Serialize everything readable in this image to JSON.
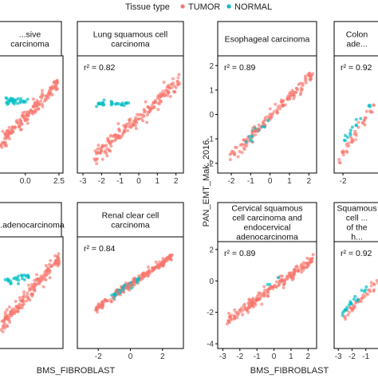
{
  "legend": {
    "title": "Tissue type",
    "entries": [
      {
        "label": "TUMOR",
        "color": "#F8766D"
      },
      {
        "label": "NORMAL",
        "color": "#00BFC4"
      }
    ]
  },
  "axis_titles": {
    "x_left": "BMS_FIBROBLAST",
    "x_right": "BMS_FIBROBLAST",
    "y_right": "PAN_EMT_Mak_2016"
  },
  "chart_data": [
    {
      "type": "scatter",
      "title": "...sive carcinoma",
      "r2": "",
      "xticks": [
        "0.0",
        "2.5"
      ],
      "yticks": [],
      "xlim": [
        -2.0,
        2.8
      ],
      "ylim": [
        -2.0,
        2.2
      ],
      "trend": {
        "x0": -1.5,
        "y0": -0.9,
        "x1": 2.6,
        "y1": 1.2
      },
      "tumor": {
        "n": 120,
        "seed": 3,
        "xmin": -2.0,
        "xmax": 2.4,
        "slope": 0.5,
        "intercept": 0.0,
        "spread": 0.25
      },
      "normal": {
        "n": 30,
        "seed": 5,
        "xmin": -1.5,
        "xmax": 0.2,
        "slope": 0.0,
        "intercept": 0.6,
        "spread": 0.15
      }
    },
    {
      "type": "scatter",
      "title": "Lung squamous cell carcinoma",
      "r2": "r² = 0.82",
      "xticks": [
        "-3",
        "-2",
        "-1",
        "0",
        "1",
        "2"
      ],
      "yticks": [],
      "xlim": [
        -3.3,
        2.4
      ],
      "ylim": [
        -2.2,
        2.0
      ],
      "trend": {
        "x0": -2.5,
        "y0": -1.3,
        "x1": 2.2,
        "y1": 1.4
      },
      "tumor": {
        "n": 140,
        "seed": 7,
        "xmin": -2.4,
        "xmax": 2.2,
        "slope": 0.6,
        "intercept": -0.2,
        "spread": 0.3
      },
      "normal": {
        "n": 30,
        "seed": 11,
        "xmin": -2.4,
        "xmax": -0.5,
        "slope": 0.0,
        "intercept": 0.3,
        "spread": 0.1
      }
    },
    {
      "type": "scatter",
      "title": "Esophageal carcinoma",
      "r2": "r² = 0.89",
      "xticks": [
        "-2",
        "-1",
        "0",
        "1",
        "2"
      ],
      "yticks": [
        "2",
        "1",
        "0",
        "-1",
        "-2"
      ],
      "xlim": [
        -2.7,
        2.4
      ],
      "ylim": [
        -2.4,
        2.4
      ],
      "trend": {
        "x0": -2.2,
        "y0": -1.9,
        "x1": 2.2,
        "y1": 1.6
      },
      "tumor": {
        "n": 110,
        "seed": 13,
        "xmin": -2.1,
        "xmax": 2.2,
        "slope": 0.8,
        "intercept": -0.1,
        "spread": 0.25
      },
      "normal": {
        "n": 12,
        "seed": 17,
        "xmin": -1.5,
        "xmax": 0.3,
        "slope": 0.8,
        "intercept": -0.1,
        "spread": 0.2
      }
    },
    {
      "type": "scatter",
      "title": "Colon ade...",
      "r2": "r² = 0.92",
      "xticks": [
        "-2"
      ],
      "yticks": [],
      "xlim": [
        -2.7,
        0.9
      ],
      "ylim": [
        -2.4,
        2.4
      ],
      "trend": {
        "x0": -2.6,
        "y0": -1.8,
        "x1": 0.9,
        "y1": 1.2
      },
      "tumor": {
        "n": 30,
        "seed": 19,
        "xmin": -2.5,
        "xmax": 0.9,
        "slope": 0.8,
        "intercept": 0.0,
        "spread": 0.3
      },
      "normal": {
        "n": 15,
        "seed": 23,
        "xmin": -2.0,
        "xmax": 0.5,
        "slope": 0.7,
        "intercept": 0.3,
        "spread": 0.2
      }
    },
    {
      "type": "scatter",
      "title": "...adenocarcinoma",
      "r2": "",
      "xticks": [],
      "yticks": [],
      "xlim": [
        -2.0,
        2.8
      ],
      "ylim": [
        -2.2,
        2.2
      ],
      "trend": {
        "x0": -1.5,
        "y0": -1.3,
        "x1": 2.7,
        "y1": 1.6
      },
      "tumor": {
        "n": 130,
        "seed": 29,
        "xmin": -1.8,
        "xmax": 2.6,
        "slope": 0.6,
        "intercept": -0.2,
        "spread": 0.3
      },
      "normal": {
        "n": 25,
        "seed": 31,
        "xmin": -1.5,
        "xmax": 0.3,
        "slope": 0.1,
        "intercept": 0.6,
        "spread": 0.15
      }
    },
    {
      "type": "scatter",
      "title": "Renal clear cell carcinoma",
      "r2": "r² = 0.84",
      "xticks": [
        "-2",
        "0",
        "2"
      ],
      "yticks": [],
      "xlim": [
        -3.3,
        3.3
      ],
      "ylim": [
        -3.2,
        2.4
      ],
      "trend": {
        "x0": -2.5,
        "y0": -1.5,
        "x1": 3.0,
        "y1": 1.4
      },
      "tumor": {
        "n": 150,
        "seed": 37,
        "xmin": -2.2,
        "xmax": 2.6,
        "slope": 0.55,
        "intercept": 0.0,
        "spread": 0.2
      },
      "normal": {
        "n": 40,
        "seed": 41,
        "xmin": -1.2,
        "xmax": 0.6,
        "slope": 0.5,
        "intercept": 0.0,
        "spread": 0.15
      }
    },
    {
      "type": "scatter",
      "title": "Cervical squamous cell carcinoma and endocervical adenocarcinoma",
      "r2": "r² = 0.89",
      "xticks": [
        "-3",
        "-2",
        "-1",
        "0",
        "1",
        "2"
      ],
      "yticks": [
        "2",
        "0",
        "-2",
        "-4"
      ],
      "xlim": [
        -3.3,
        2.5
      ],
      "ylim": [
        -4.3,
        2.5
      ],
      "trend": {
        "x0": -2.6,
        "y0": -2.6,
        "x1": 2.3,
        "y1": 1.3
      },
      "tumor": {
        "n": 150,
        "seed": 43,
        "xmin": -2.8,
        "xmax": 2.3,
        "slope": 0.8,
        "intercept": -0.4,
        "spread": 0.35
      },
      "normal": {
        "n": 3,
        "seed": 47,
        "xmin": -0.5,
        "xmax": 0.5,
        "slope": 0.8,
        "intercept": 0.0,
        "spread": 0.1
      }
    },
    {
      "type": "scatter",
      "title": "Squamous cell ... of the h...",
      "r2": "r² = 0.92",
      "xticks": [
        "-3",
        "-2",
        "-1"
      ],
      "yticks": [],
      "xlim": [
        -3.3,
        0.0
      ],
      "ylim": [
        -4.3,
        2.5
      ],
      "trend": {
        "x0": -2.8,
        "y0": -2.3,
        "x1": 0.0,
        "y1": 0.2
      },
      "tumor": {
        "n": 30,
        "seed": 53,
        "xmin": -2.6,
        "xmax": 0.0,
        "slope": 0.9,
        "intercept": 0.1,
        "spread": 0.3
      },
      "normal": {
        "n": 20,
        "seed": 59,
        "xmin": -2.7,
        "xmax": -0.8,
        "slope": 0.9,
        "intercept": 0.4,
        "spread": 0.2
      }
    }
  ]
}
